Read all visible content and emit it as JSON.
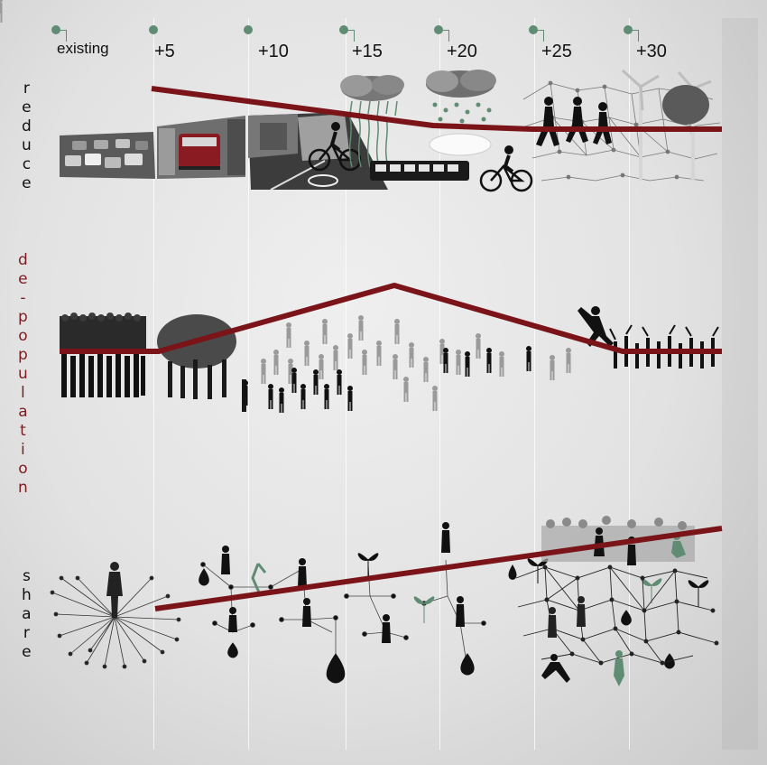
{
  "timeline": {
    "years": [
      "existing",
      "+5",
      "+10",
      "+15",
      "+20",
      "+25",
      "+30"
    ]
  },
  "rows": [
    {
      "id": "reduce",
      "label": "reduce",
      "label_color": "#111111"
    },
    {
      "id": "de-population",
      "label": "de-population",
      "label_color": "#7a1c22"
    },
    {
      "id": "share",
      "label": "share",
      "label_color": "#111111"
    }
  ],
  "colors": {
    "trend_line": "#7a1419",
    "accent_green": "#5f8c72",
    "silhouette": "#111111",
    "background": "#e6e6e6"
  },
  "illustrations": {
    "reduce": [
      "traffic-jam-photo",
      "tram-photo",
      "bike-lane-photo",
      "cyclist",
      "rain-cloud",
      "bus",
      "running-figures",
      "wind-turbines",
      "network-mesh"
    ],
    "de-population": [
      "dense-crowd",
      "thinning-crowd",
      "walking-people",
      "dancing-figures"
    ],
    "share": [
      "central-figure-radiating-lines",
      "network-nodes",
      "water-drops",
      "leaf-sprouts",
      "network-mesh",
      "crowd-shadow"
    ]
  }
}
